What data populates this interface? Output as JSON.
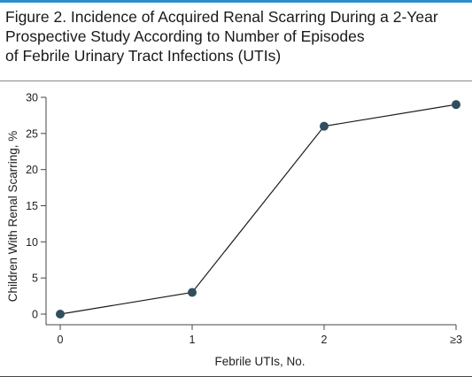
{
  "figure": {
    "title_lines": [
      "Figure 2. Incidence of Acquired Renal Scarring During a 2-Year",
      "Prospective Study According to Number of Episodes",
      "of Febrile Urinary Tract Infections (UTIs)"
    ]
  },
  "colors": {
    "accent_rule": "#2b8fc9",
    "marker": "#2f4f5f",
    "line": "#1a1a1a",
    "axis": "#444444"
  },
  "chart_data": {
    "type": "line",
    "title": "Figure 2. Incidence of Acquired Renal Scarring During a 2-Year Prospective Study According to Number of Episodes of Febrile Urinary Tract Infections (UTIs)",
    "xlabel": "Febrile UTIs, No.",
    "ylabel": "Children With Renal Scarring, %",
    "categories": [
      "0",
      "1",
      "2",
      "≥3"
    ],
    "series": [
      {
        "values": [
          0,
          3,
          26,
          29
        ]
      }
    ],
    "ylim": [
      0,
      30
    ],
    "yticks": [
      "0",
      "5",
      "10",
      "15",
      "20",
      "25",
      "30"
    ],
    "grid": false,
    "legend": "none"
  }
}
